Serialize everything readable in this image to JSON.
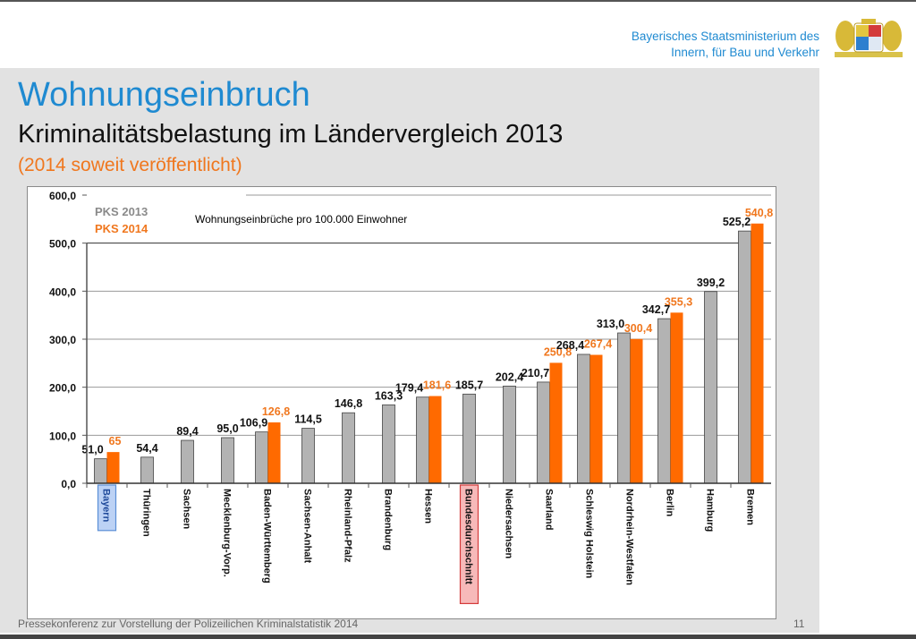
{
  "header": {
    "ministry_line1": "Bayerisches Staatsministerium des",
    "ministry_line2": "Innern, für Bau und Verkehr",
    "crest_icon": "bavarian-coat-of-arms"
  },
  "slide": {
    "title": "Wohnungseinbruch",
    "subtitle": "Kriminalitätsbelastung im Ländervergleich 2013",
    "note": "(2014 soweit veröffentlicht)",
    "footer": "Pressekonferenz zur Vorstellung der Polizeilichen Kriminalstatistik 2014",
    "page_number": "11"
  },
  "colors": {
    "series_2013": "#b3b3b3",
    "series_2014": "#ff6a00",
    "label_2014": "#f0771e",
    "title_blue": "#1f8ad1",
    "highlight_bayern": "#bcd2f5",
    "highlight_bund": "#f7b9b9"
  },
  "chart_data": {
    "type": "bar",
    "title": "Wohnungseinbrüche pro 100.000 Einwohner",
    "xlabel": "",
    "ylabel": "",
    "ylim": [
      0,
      600
    ],
    "yticks": [
      "0,0",
      "100,0",
      "200,0",
      "300,0",
      "400,0",
      "500,0",
      "600,0"
    ],
    "grid": true,
    "legend_position": "top-left",
    "categories": [
      "Bayern",
      "Thüringen",
      "Sachsen",
      "Mecklenburg-Vorp.",
      "Baden-Württemberg",
      "Sachsen-Anhalt",
      "Rheinland-Pfalz",
      "Brandenburg",
      "Hessen",
      "Bundesdurchschnitt",
      "Niedersachsen",
      "Saarland",
      "Schleswig Holstein",
      "Nordrhein-Westfalen",
      "Berlin",
      "Hamburg",
      "Bremen"
    ],
    "highlighted": {
      "Bayern": "blue",
      "Bundesdurchschnitt": "red"
    },
    "series": [
      {
        "name": "PKS 2013",
        "values": [
          51.0,
          54.4,
          89.4,
          95.0,
          106.9,
          114.5,
          146.8,
          163.3,
          179.4,
          185.7,
          202.4,
          210.7,
          268.4,
          313.0,
          342.7,
          399.2,
          525.2
        ],
        "labels": [
          "51,0",
          "54,4",
          "89,4",
          "95,0",
          "106,9",
          "114,5",
          "146,8",
          "163,3",
          "179,4",
          "185,7",
          "202,4",
          "210,7",
          "268,4",
          "313,0",
          "342,7",
          "399,2",
          "525,2"
        ]
      },
      {
        "name": "PKS 2014",
        "values": [
          65,
          null,
          null,
          null,
          126.8,
          null,
          null,
          null,
          181.6,
          null,
          null,
          250.8,
          267.4,
          300.4,
          355.3,
          null,
          540.8
        ],
        "labels": [
          "65",
          null,
          null,
          null,
          "126,8",
          null,
          null,
          null,
          "181,6",
          null,
          null,
          "250,8",
          "267,4",
          "300,4",
          "355,3",
          null,
          "540,8"
        ]
      }
    ]
  }
}
